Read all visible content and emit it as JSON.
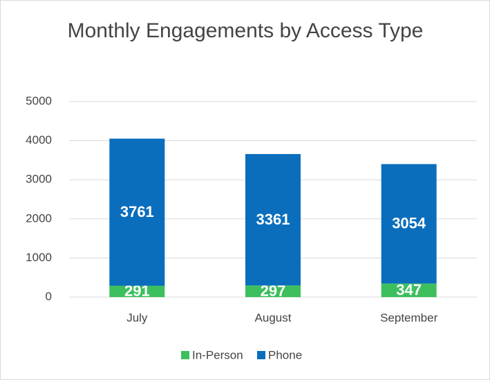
{
  "chart_data": {
    "type": "stacked_bar",
    "title": "Monthly Engagements by Access Type",
    "categories": [
      "July",
      "August",
      "September"
    ],
    "series": [
      {
        "name": "In-Person",
        "color": "#3dbf5e",
        "values": [
          291,
          297,
          347
        ]
      },
      {
        "name": "Phone",
        "color": "#0a6ebd",
        "values": [
          3761,
          3361,
          3054
        ]
      }
    ],
    "ylim": [
      0,
      5000
    ],
    "yticks": [
      0,
      1000,
      2000,
      3000,
      4000,
      5000
    ],
    "grid": true,
    "legend": "bottom"
  }
}
